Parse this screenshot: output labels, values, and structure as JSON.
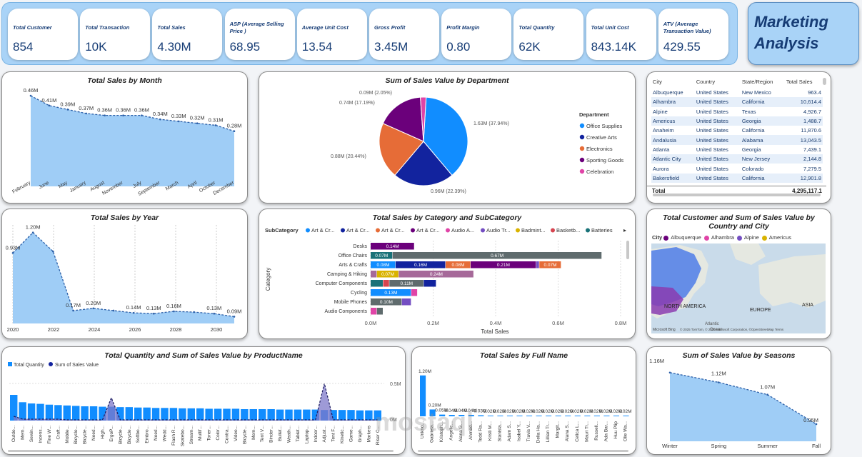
{
  "kpis": [
    {
      "label": "Total Customer",
      "value": "854"
    },
    {
      "label": "Total Transaction",
      "value": "10K"
    },
    {
      "label": "Total Sales",
      "value": "4.30M"
    },
    {
      "label": "ASP (Average Selling Price )",
      "value": "68.95"
    },
    {
      "label": "Average Unit Cost",
      "value": "13.54"
    },
    {
      "label": "Gross Profit",
      "value": "3.45M"
    },
    {
      "label": "Profit Margin",
      "value": "0.80"
    },
    {
      "label": "Total Quantity",
      "value": "62K"
    },
    {
      "label": "Total Unit Cost",
      "value": "843.14K"
    },
    {
      "label": "ATV (Average Transaction Value)",
      "value": "429.55"
    }
  ],
  "report_title_line1": "Marketing",
  "report_title_line2": "Analysis",
  "colors": {
    "area": "#9fcdf6",
    "line": "#2b5fa8",
    "blue": "#118dff",
    "navy": "#12239e",
    "orange": "#e66c37",
    "purple": "#6b007b",
    "pink": "#e044a7",
    "violet": "#744ec2",
    "gold": "#d9b300",
    "brown": "#d64550",
    "grey": "#5f6b6d",
    "teal": "#197278",
    "lavender": "#a66999"
  },
  "monthly": {
    "title": "Total Sales by Month",
    "chart_data": {
      "type": "area",
      "x": [
        "February",
        "June",
        "May",
        "January",
        "August",
        "November",
        "July",
        "September",
        "March",
        "April",
        "October",
        "December"
      ],
      "values": [
        0.46,
        0.41,
        0.39,
        0.37,
        0.36,
        0.36,
        0.36,
        0.34,
        0.33,
        0.32,
        0.31,
        0.28
      ],
      "labels": [
        "0.46M",
        "0.41M",
        "0.39M",
        "0.37M",
        "0.36M",
        "0.36M",
        "0.36M",
        "0.34M",
        "0.33M",
        "0.32M",
        "0.31M",
        "0.28M"
      ],
      "ylim": [
        0,
        0.5
      ]
    }
  },
  "yearly": {
    "title": "Total Sales by Year",
    "chart_data": {
      "type": "area",
      "x": [
        2020,
        2021,
        2022,
        2023,
        2024,
        2025,
        2026,
        2027,
        2028,
        2029,
        2030,
        2031
      ],
      "values": [
        0.93,
        1.2,
        0.95,
        0.17,
        0.2,
        0.17,
        0.14,
        0.13,
        0.16,
        0.15,
        0.13,
        0.09
      ],
      "labels": [
        "0.93M",
        "1.20M",
        "",
        "0.17M",
        "0.20M",
        "",
        "0.14M",
        "0.13M",
        "0.16M",
        "",
        "0.13M",
        "0.09M"
      ],
      "xticks": [
        "2020",
        "2022",
        "2024",
        "2026",
        "2028",
        "2030"
      ],
      "ylim": [
        0,
        1.3
      ]
    }
  },
  "department": {
    "title": "Sum of Sales Value by Department",
    "legend_title": "Department",
    "chart_data": {
      "type": "pie",
      "categories": [
        "Office Supplies",
        "Creative Arts",
        "Electronics",
        "Sporting Goods",
        "Celebration"
      ],
      "values": [
        1.63,
        0.96,
        0.88,
        0.74,
        0.09
      ],
      "labels": [
        "1.63M (37.94%)",
        "0.96M (22.39%)",
        "0.88M (20.44%)",
        "0.74M (17.19%)",
        "0.09M (2.05%)"
      ]
    }
  },
  "city_table": {
    "headers": [
      "City",
      "Country",
      "State/Region",
      "Total Sales"
    ],
    "rows": [
      [
        "Albuquerque",
        "United States",
        "New Mexico",
        "963.4"
      ],
      [
        "Alhambra",
        "United States",
        "California",
        "10,614.4"
      ],
      [
        "Alpine",
        "United States",
        "Texas",
        "4,926.7"
      ],
      [
        "Americus",
        "United States",
        "Georgia",
        "1,488.7"
      ],
      [
        "Anaheim",
        "United States",
        "California",
        "11,870.6"
      ],
      [
        "Andalusia",
        "United States",
        "Alabama",
        "13,043.5"
      ],
      [
        "Atlanta",
        "United States",
        "Georgia",
        "7,439.1"
      ],
      [
        "Atlantic City",
        "United States",
        "New Jersey",
        "2,144.8"
      ],
      [
        "Aurora",
        "United States",
        "Colorado",
        "7,279.5"
      ],
      [
        "Bakersfield",
        "United States",
        "California",
        "12,901.8"
      ]
    ],
    "total_label": "Total",
    "total_value": "4,295,117.1"
  },
  "category": {
    "title": "Total Sales by Category and SubCategory",
    "legend_title": "SubCategory",
    "legend_items": [
      "Art & Cr...",
      "Art & Cr...",
      "Art & Cr...",
      "Art & Cr...",
      "Audio A...",
      "Audio Tr...",
      "Badmint...",
      "Basketb...",
      "Batteries"
    ],
    "axis_title_y": "Category",
    "axis_title_x": "Total Sales",
    "xticks": [
      "0.0M",
      "0.2M",
      "0.4M",
      "0.6M",
      "0.8M"
    ],
    "chart_data": {
      "type": "bar",
      "orientation": "horizontal-stacked",
      "xlim": [
        0,
        0.8
      ],
      "categories": [
        "Desks",
        "Office Chairs",
        "Arts & Crafts",
        "Camping & Hiking",
        "Computer Components",
        "Cycling",
        "Mobile Phones",
        "Audio Components"
      ],
      "segments": [
        [
          {
            "v": 0.14,
            "c": "purple",
            "l": "0.14M"
          }
        ],
        [
          {
            "v": 0.07,
            "c": "teal",
            "l": "0.07M"
          },
          {
            "v": 0.67,
            "c": "grey",
            "l": "0.67M"
          }
        ],
        [
          {
            "v": 0.08,
            "c": "blue",
            "l": "0.08M"
          },
          {
            "v": 0.16,
            "c": "navy",
            "l": "0.16M"
          },
          {
            "v": 0.08,
            "c": "orange",
            "l": "0.08M"
          },
          {
            "v": 0.21,
            "c": "purple",
            "l": "0.21M"
          },
          {
            "v": 0.01,
            "c": "violet",
            "l": ""
          },
          {
            "v": 0.07,
            "c": "orange",
            "l": "0.07M"
          }
        ],
        [
          {
            "v": 0.02,
            "c": "lavender",
            "l": ""
          },
          {
            "v": 0.07,
            "c": "gold",
            "l": "0.07M"
          },
          {
            "v": 0.24,
            "c": "lavender",
            "l": "0.24M"
          }
        ],
        [
          {
            "v": 0.04,
            "c": "teal",
            "l": ""
          },
          {
            "v": 0.02,
            "c": "brown",
            "l": ""
          },
          {
            "v": 0.11,
            "c": "grey",
            "l": "0.11M"
          },
          {
            "v": 0.04,
            "c": "navy",
            "l": ""
          }
        ],
        [
          {
            "v": 0.13,
            "c": "blue",
            "l": "0.13M"
          },
          {
            "v": 0.02,
            "c": "pink",
            "l": ""
          }
        ],
        [
          {
            "v": 0.1,
            "c": "grey",
            "l": "0.10M"
          },
          {
            "v": 0.03,
            "c": "violet",
            "l": ""
          }
        ],
        [
          {
            "v": 0.02,
            "c": "pink",
            "l": ""
          },
          {
            "v": 0.02,
            "c": "grey",
            "l": ""
          }
        ]
      ]
    }
  },
  "map": {
    "title": "Total Customer and Sum of Sales Value by Country and City",
    "legend_title": "City",
    "legend_items": [
      "Albuquerque",
      "Alhambra",
      "Alpine",
      "Americus"
    ],
    "labels": [
      "NORTH AMERICA",
      "EUROPE",
      "ASIA",
      "Atlantic",
      "Ocean"
    ],
    "attribution": "© 2025 TomTom, © 2025 Microsoft Corporation, ©OpenStreetMap  Terms",
    "brand": "Microsoft Bing"
  },
  "product": {
    "title": "Total Quantity and Sum of Sales Value by ProductName",
    "legend": [
      "Total Quantity",
      "Sum of Sales Value"
    ],
    "yticks": [
      "0.5M",
      "0M"
    ],
    "chart_data": {
      "type": "bar+line",
      "categories": [
        "Outdo...",
        "Mem...",
        "Sewin...",
        "Incens...",
        "Fine W...",
        "Craft...",
        "Mobile...",
        "Bicycle...",
        "Bicycle...",
        "Need...",
        "High...",
        "ErgoP...",
        "Bicycle...",
        "Bicycle...",
        "Softbo...",
        "Embro...",
        "Need...",
        "Wedd...",
        "Flash R...",
        "Skatebo...",
        "Stream...",
        "Multif...",
        "Toner...",
        "Color...",
        "Contra...",
        "Video...",
        "Bicycle...",
        "Mem...",
        "Tent V...",
        "Binder...",
        "Bullet...",
        "Weath...",
        "Tablet...",
        "Laptop...",
        "Indoor...",
        "Adjust...",
        "Tent F...",
        "Kinetic...",
        "Game...",
        "Graph...",
        "Markers",
        "Riser C..."
      ],
      "quantity": [
        6.3,
        4.5,
        4.2,
        4.1,
        3.9,
        3.8,
        3.7,
        3.6,
        3.5,
        3.5,
        3.4,
        3.4,
        3.3,
        3.3,
        3.2,
        3.2,
        3.1,
        3.1,
        3.1,
        3.0,
        3.0,
        3.0,
        2.9,
        2.9,
        2.9,
        2.9,
        2.8,
        2.8,
        2.8,
        2.8,
        2.7,
        2.7,
        2.7,
        2.7,
        2.7,
        2.6,
        2.6,
        2.6,
        2.6,
        2.5,
        2.5,
        2.5
      ],
      "sales": [
        0.06,
        0.02,
        0.02,
        0.02,
        0.02,
        0.02,
        0.01,
        0.01,
        0.01,
        0.01,
        0.01,
        0.32,
        0.01,
        0.01,
        0.01,
        0.01,
        0.01,
        0.01,
        0.01,
        0.01,
        0.01,
        0.01,
        0.01,
        0.01,
        0.01,
        0.01,
        0.01,
        0.01,
        0.01,
        0.01,
        0.01,
        0.01,
        0.01,
        0.01,
        0.01,
        0.52,
        0.01,
        0.01,
        0.01,
        0.01,
        0.01,
        0.01
      ],
      "ylim": [
        0,
        0.6
      ]
    }
  },
  "fullname": {
    "title": "Total Sales by Full Name",
    "chart_data": {
      "type": "bar",
      "categories": [
        "Unkno...",
        "Gabriela...",
        "Kristoph...",
        "Angelic...",
        "Alana G...",
        "Ahmad...",
        "Todd Ra...",
        "Kristi M...",
        "Stanisla...",
        "Adam S...",
        "Isabel Y...",
        "Travis V...",
        "Delia Ha...",
        "Lillian Tr...",
        "Margit...",
        "Alana S...",
        "Celica L...",
        "Mauri Tr...",
        "Russell...",
        "Ada Bar...",
        "Huu Plip",
        "Olie Wa..."
      ],
      "values": [
        1.2,
        0.2,
        0.05,
        0.04,
        0.04,
        0.04,
        0.03,
        0.02,
        0.02,
        0.02,
        0.02,
        0.02,
        0.02,
        0.02,
        0.02,
        0.02,
        0.02,
        0.02,
        0.02,
        0.02,
        0.02,
        0.02
      ],
      "labels": [
        "1.20M",
        "0.20M",
        "0.05M",
        "0.04M",
        "0.04M",
        "0.04M",
        "0.03M",
        "0.02M",
        "0.02M",
        "0.02M",
        "0.02M",
        "0.02M",
        "0.02M",
        "0.02M",
        "0.02M",
        "0.02M",
        "0.02M",
        "0.02M",
        "0.02M",
        "0.02M",
        "0.02M",
        "0.02M"
      ],
      "ylim": [
        0,
        1.3
      ]
    }
  },
  "seasons": {
    "title": "Sum of Sales Value by Seasons",
    "chart_data": {
      "type": "area",
      "x": [
        "Winter",
        "Spring",
        "Summer",
        "Fall"
      ],
      "values": [
        1.16,
        1.12,
        1.07,
        0.95
      ],
      "labels": [
        "1.16M",
        "1.12M",
        "1.07M",
        "0.95M"
      ],
      "ylim": [
        0.9,
        1.2
      ]
    }
  },
  "watermark": "mostaql"
}
